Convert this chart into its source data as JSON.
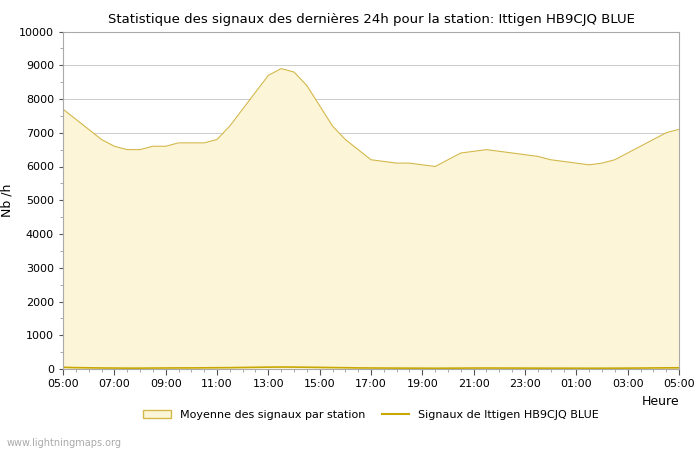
{
  "title": "Statistique des signaux des dernières 24h pour la station: Ittigen HB9CJQ BLUE",
  "xlabel": "Heure",
  "ylabel": "Nb /h",
  "ylim": [
    0,
    10000
  ],
  "yticks": [
    0,
    1000,
    2000,
    3000,
    4000,
    5000,
    6000,
    7000,
    8000,
    9000,
    10000
  ],
  "xtick_labels": [
    "05:00",
    "07:00",
    "09:00",
    "11:00",
    "13:00",
    "15:00",
    "17:00",
    "19:00",
    "21:00",
    "23:00",
    "01:00",
    "03:00",
    "05:00"
  ],
  "fill_color": "#fdf5d8",
  "fill_edge_color": "#d4b84a",
  "line_color": "#c8a800",
  "watermark": "www.lightningmaps.org",
  "legend_fill_label": "Moyenne des signaux par station",
  "legend_line_label": "Signaux de Ittigen HB9CJQ BLUE",
  "background_color": "#ffffff",
  "grid_color": "#cccccc",
  "x_values": [
    0,
    1,
    2,
    3,
    4,
    5,
    6,
    7,
    8,
    9,
    10,
    11,
    12,
    13,
    14,
    15,
    16,
    17,
    18,
    19,
    20,
    21,
    22,
    23,
    24,
    25,
    26,
    27,
    28,
    29,
    30,
    31,
    32,
    33,
    34,
    35,
    36,
    37,
    38,
    39,
    40,
    41,
    42,
    43,
    44,
    45,
    46,
    47,
    48
  ],
  "fill_values": [
    7700,
    7400,
    7100,
    6800,
    6600,
    6500,
    6500,
    6600,
    6600,
    6700,
    6700,
    6700,
    6800,
    7200,
    7700,
    8200,
    8700,
    8900,
    8800,
    8400,
    7800,
    7200,
    6800,
    6500,
    6200,
    6150,
    6100,
    6100,
    6050,
    6000,
    6200,
    6400,
    6450,
    6500,
    6450,
    6400,
    6350,
    6300,
    6200,
    6150,
    6100,
    6050,
    6100,
    6200,
    6400,
    6600,
    6800,
    7000,
    7100
  ],
  "line_values": [
    50,
    40,
    35,
    30,
    28,
    25,
    25,
    28,
    30,
    32,
    32,
    35,
    38,
    40,
    45,
    50,
    55,
    58,
    56,
    52,
    48,
    42,
    38,
    32,
    30,
    28,
    26,
    25,
    24,
    22,
    24,
    26,
    28,
    29,
    28,
    27,
    26,
    25,
    24,
    24,
    23,
    22,
    23,
    24,
    26,
    28,
    31,
    34,
    36
  ]
}
